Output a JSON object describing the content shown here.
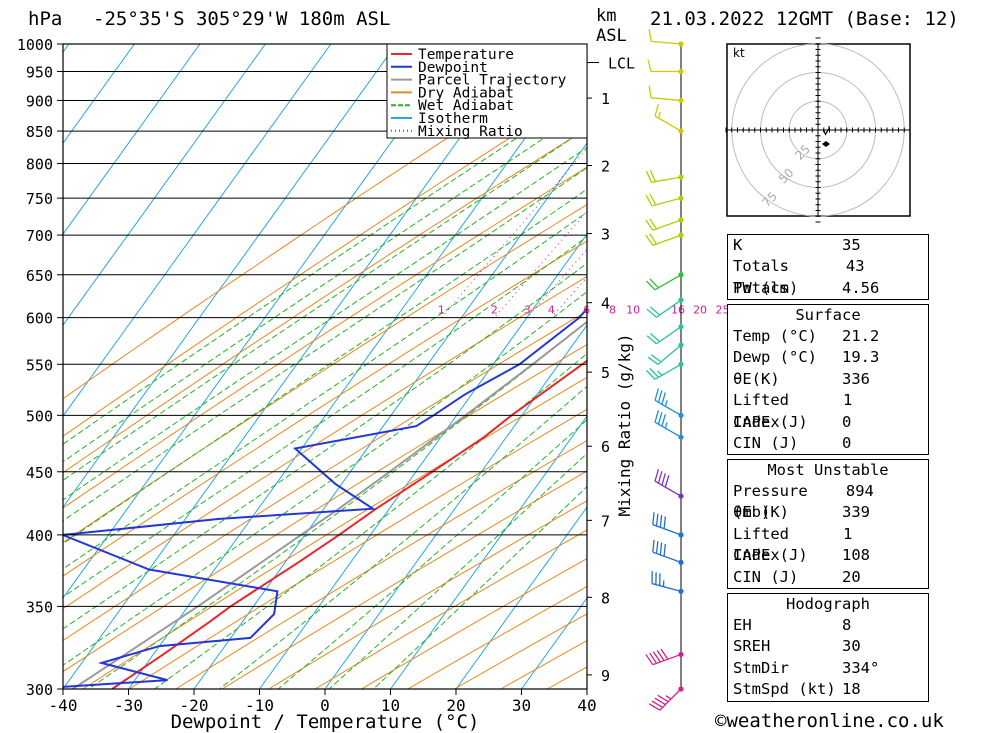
{
  "header": {
    "hpa_unit": "hPa",
    "location": "-25°35'S 305°29'W 180m ASL",
    "km_unit": "km",
    "asl_unit": "ASL",
    "date": "21.03.2022 12GMT (Base: 12)"
  },
  "chart_data": {
    "type": "skew-t",
    "x_label": "Dewpoint / Temperature (°C)",
    "x_ticks": [
      -40,
      -30,
      -20,
      -10,
      0,
      10,
      20,
      30,
      40
    ],
    "pressure_ticks": [
      300,
      350,
      400,
      450,
      500,
      550,
      600,
      650,
      700,
      750,
      800,
      850,
      900,
      950,
      1000
    ],
    "km_ticks": [
      {
        "label": "1",
        "p": 904
      },
      {
        "label": "2",
        "p": 797
      },
      {
        "label": "3",
        "p": 702
      },
      {
        "label": "4",
        "p": 617
      },
      {
        "label": "5",
        "p": 542
      },
      {
        "label": "6",
        "p": 472
      },
      {
        "label": "7",
        "p": 411
      },
      {
        "label": "8",
        "p": 356
      },
      {
        "label": "9",
        "p": 308
      }
    ],
    "lcl_label": "LCL",
    "lcl_pressure": 966,
    "mixing_ratio_axis_label": "Mixing Ratio (g/kg)",
    "mixing_ratio_labels": [
      "1",
      "2",
      "3",
      "4",
      "6",
      "8",
      "10",
      "16",
      "20",
      "25"
    ],
    "mixing_ratio_values": [
      1,
      2,
      3,
      4,
      6,
      8,
      10,
      16,
      20,
      25
    ],
    "legend": [
      {
        "name": "Temperature",
        "color": "#e8262b"
      },
      {
        "name": "Dewpoint",
        "color": "#2437d6"
      },
      {
        "name": "Parcel Trajectory",
        "color": "#9a9a9a"
      },
      {
        "name": "Dry Adiabat",
        "color": "#e8891e"
      },
      {
        "name": "Wet Adiabat",
        "color": "#27b327"
      },
      {
        "name": "Isotherm",
        "color": "#27a8e0"
      },
      {
        "name": "Mixing Ratio",
        "color": "#d0218f"
      }
    ],
    "temperature": [
      [
        1000,
        21.2
      ],
      [
        970,
        22.0
      ],
      [
        950,
        21.6
      ],
      [
        925,
        21.8
      ],
      [
        900,
        21.2
      ],
      [
        870,
        19.8
      ],
      [
        850,
        18.2
      ],
      [
        820,
        16.8
      ],
      [
        800,
        15.4
      ],
      [
        770,
        17.2
      ],
      [
        750,
        17.0
      ],
      [
        730,
        15.5
      ],
      [
        700,
        13.6
      ],
      [
        680,
        13.4
      ],
      [
        650,
        12.8
      ],
      [
        620,
        9.6
      ],
      [
        600,
        7.8
      ],
      [
        550,
        3.6
      ],
      [
        500,
        -1.6
      ],
      [
        480,
        -3.4
      ],
      [
        450,
        -7.5
      ],
      [
        420,
        -12.0
      ],
      [
        400,
        -14.8
      ],
      [
        380,
        -18.0
      ],
      [
        350,
        -23.5
      ],
      [
        340,
        -25.0
      ],
      [
        320,
        -28.5
      ],
      [
        300,
        -32.5
      ]
    ],
    "dewpoint": [
      [
        1000,
        19.3
      ],
      [
        950,
        18.6
      ],
      [
        900,
        17.0
      ],
      [
        850,
        15.2
      ],
      [
        800,
        13.0
      ],
      [
        770,
        7.5
      ],
      [
        750,
        3.5
      ],
      [
        700,
        5.0
      ],
      [
        680,
        1.0
      ],
      [
        660,
        -4.0
      ],
      [
        650,
        -3.5
      ],
      [
        630,
        -1.5
      ],
      [
        600,
        -2.0
      ],
      [
        550,
        -6.0
      ],
      [
        520,
        -11.0
      ],
      [
        500,
        -13.5
      ],
      [
        490,
        -15.0
      ],
      [
        470,
        -31.0
      ],
      [
        440,
        -21.0
      ],
      [
        420,
        -12.5
      ],
      [
        412,
        -35.0
      ],
      [
        400,
        -57.0
      ],
      [
        375,
        -40.0
      ],
      [
        360,
        -18.0
      ],
      [
        345,
        -16.0
      ],
      [
        330,
        -17.0
      ],
      [
        325,
        -30.0
      ],
      [
        315,
        -37.0
      ],
      [
        305,
        -25.0
      ],
      [
        300,
        -45.0
      ]
    ],
    "parcel": [
      [
        1000,
        21.2
      ],
      [
        966,
        18.8
      ],
      [
        900,
        16.2
      ],
      [
        850,
        14.0
      ],
      [
        800,
        11.8
      ],
      [
        750,
        9.4
      ],
      [
        700,
        6.6
      ],
      [
        650,
        3.5
      ],
      [
        600,
        0.0
      ],
      [
        550,
        -4.0
      ],
      [
        500,
        -8.6
      ],
      [
        450,
        -14.0
      ],
      [
        420,
        -17.7
      ],
      [
        400,
        -20.6
      ],
      [
        350,
        -28.5
      ],
      [
        300,
        -38.5
      ]
    ],
    "wind_barbs": [
      {
        "p": 1000,
        "dir": 275,
        "kt": 10,
        "color": "#cccc00"
      },
      {
        "p": 950,
        "dir": 270,
        "kt": 10,
        "color": "#cccc00"
      },
      {
        "p": 900,
        "dir": 275,
        "kt": 10,
        "color": "#cccc00"
      },
      {
        "p": 850,
        "dir": 300,
        "kt": 15,
        "color": "#cccc00"
      },
      {
        "p": 780,
        "dir": 260,
        "kt": 20,
        "color": "#a8d400"
      },
      {
        "p": 750,
        "dir": 255,
        "kt": 20,
        "color": "#a8d400"
      },
      {
        "p": 720,
        "dir": 250,
        "kt": 20,
        "color": "#a8d400"
      },
      {
        "p": 700,
        "dir": 250,
        "kt": 20,
        "color": "#a8d400"
      },
      {
        "p": 650,
        "dir": 240,
        "kt": 20,
        "color": "#2fc02f"
      },
      {
        "p": 620,
        "dir": 235,
        "kt": 20,
        "color": "#2ac0a0"
      },
      {
        "p": 590,
        "dir": 235,
        "kt": 20,
        "color": "#2ac0a0"
      },
      {
        "p": 570,
        "dir": 230,
        "kt": 20,
        "color": "#2ac0a0"
      },
      {
        "p": 550,
        "dir": 240,
        "kt": 25,
        "color": "#2ac0a0"
      },
      {
        "p": 500,
        "dir": 300,
        "kt": 35,
        "color": "#2090d0"
      },
      {
        "p": 480,
        "dir": 300,
        "kt": 35,
        "color": "#2090d0"
      },
      {
        "p": 430,
        "dir": 300,
        "kt": 40,
        "color": "#8030c0"
      },
      {
        "p": 400,
        "dir": 290,
        "kt": 40,
        "color": "#2070d0"
      },
      {
        "p": 380,
        "dir": 290,
        "kt": 40,
        "color": "#2070d0"
      },
      {
        "p": 360,
        "dir": 285,
        "kt": 35,
        "color": "#2070d0"
      },
      {
        "p": 320,
        "dir": 250,
        "kt": 50,
        "color": "#d0208a"
      },
      {
        "p": 300,
        "dir": 225,
        "kt": 45,
        "color": "#d0208a"
      }
    ],
    "hodograph": {
      "unit": "kt",
      "ring_labels": [
        "25",
        "50",
        "75"
      ],
      "ring_values": [
        25,
        50,
        75
      ]
    }
  },
  "indices": {
    "general": [
      {
        "label": "K",
        "value": "35"
      },
      {
        "label": "Totals Totals",
        "value": "43"
      },
      {
        "label": "PW (cm)",
        "value": "4.56"
      }
    ],
    "surface_title": "Surface",
    "surface": [
      {
        "label": "Temp (°C)",
        "value": "21.2"
      },
      {
        "label": "Dewp (°C)",
        "value": "19.3"
      },
      {
        "label": "θE(K)",
        "value": "336"
      },
      {
        "label": "Lifted Index",
        "value": "1"
      },
      {
        "label": "CAPE (J)",
        "value": "0"
      },
      {
        "label": "CIN (J)",
        "value": "0"
      }
    ],
    "unstable_title": "Most Unstable",
    "unstable": [
      {
        "label": "Pressure (mb)",
        "value": "894"
      },
      {
        "label": "θE (K)",
        "value": "339"
      },
      {
        "label": "Lifted Index",
        "value": "1"
      },
      {
        "label": "CAPE (J)",
        "value": "108"
      },
      {
        "label": "CIN (J)",
        "value": "20"
      }
    ],
    "hodograph_title": "Hodograph",
    "hodograph": [
      {
        "label": "EH",
        "value": "8"
      },
      {
        "label": "SREH",
        "value": "30"
      },
      {
        "label": "StmDir",
        "value": "334°"
      },
      {
        "label": "StmSpd (kt)",
        "value": "18"
      }
    ]
  },
  "footer": "©weatheronline.co.uk"
}
